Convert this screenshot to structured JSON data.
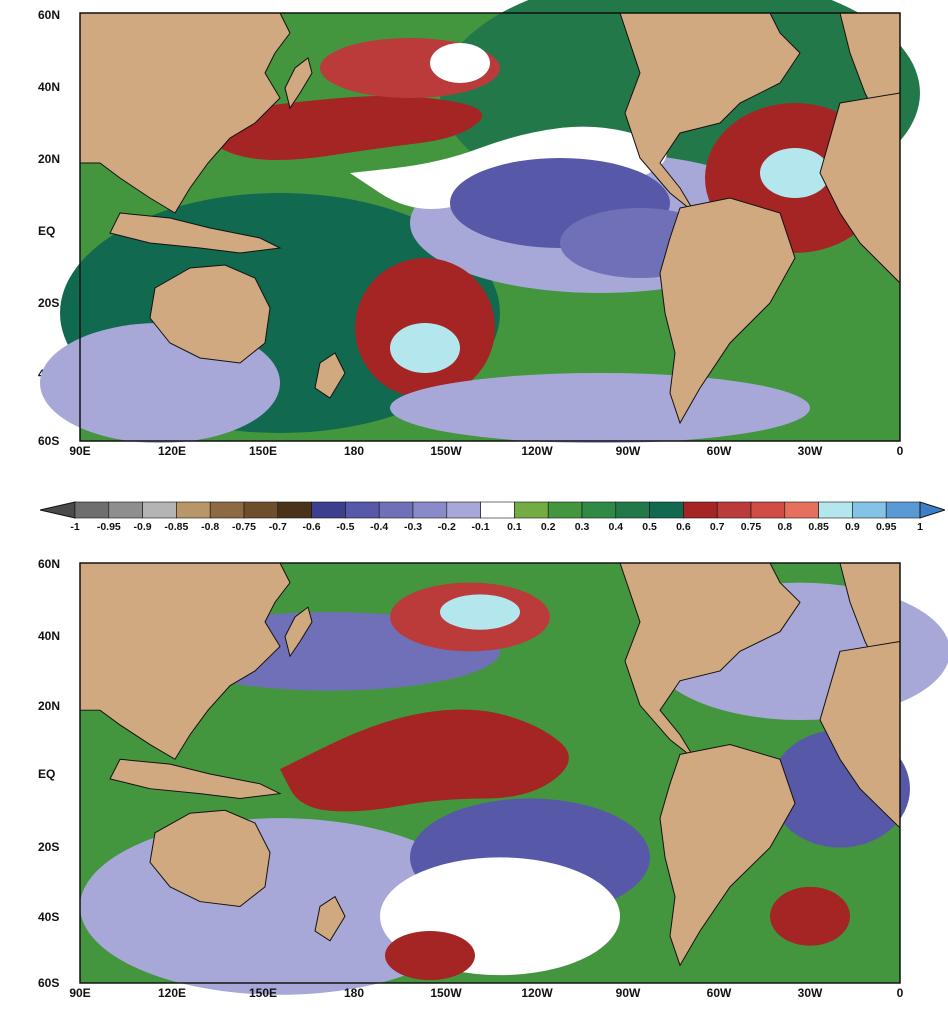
{
  "maps": [
    {
      "y_ticks": [
        "60N",
        "40N",
        "20N",
        "EQ",
        "20S",
        "40S",
        "60S"
      ],
      "x_ticks": [
        "90E",
        "120E",
        "150E",
        "180",
        "150W",
        "120W",
        "90W",
        "60W",
        "30W",
        "0"
      ]
    },
    {
      "y_ticks": [
        "60N",
        "40N",
        "20N",
        "EQ",
        "20S",
        "40S",
        "60S"
      ],
      "x_ticks": [
        "90E",
        "120E",
        "150E",
        "180",
        "150W",
        "120W",
        "90W",
        "60W",
        "30W",
        "0"
      ]
    }
  ],
  "colorbar": {
    "labels": [
      "-1",
      "-0.95",
      "-0.9",
      "-0.85",
      "-0.8",
      "-0.75",
      "-0.7",
      "-0.6",
      "-0.5",
      "-0.4",
      "-0.3",
      "-0.2",
      "-0.1",
      "0.1",
      "0.2",
      "0.3",
      "0.4",
      "0.5",
      "0.6",
      "0.7",
      "0.75",
      "0.8",
      "0.85",
      "0.9",
      "0.95",
      "1"
    ],
    "colors": [
      "#6e6e6e",
      "#8e8e8e",
      "#b4b4b4",
      "#b8966a",
      "#8e6a44",
      "#6e4e2c",
      "#4a3318",
      "#3e3e8e",
      "#5858a8",
      "#7070b8",
      "#8a8ac8",
      "#a8a8d8",
      "#ffffff",
      "#74ac44",
      "#44963e",
      "#2e8a44",
      "#23784a",
      "#116a50",
      "#a52424",
      "#bb3a3a",
      "#d04c44",
      "#e6705e",
      "#b4e6ee",
      "#84c2e6",
      "#5a9ad4"
    ],
    "under_color": "#4a4a4a",
    "over_color": "#3e7ec8"
  },
  "palette": {
    "land": "#d1a981",
    "coast": "#111111",
    "frame": "#111111"
  }
}
